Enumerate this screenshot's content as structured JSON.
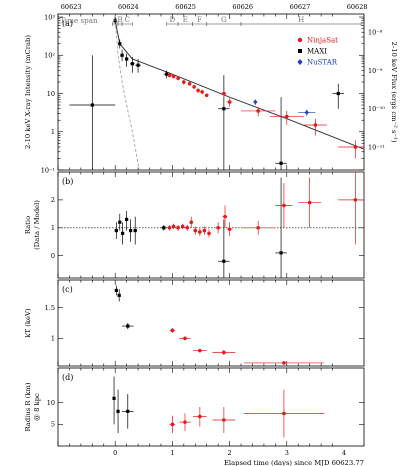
{
  "chart_data": {
    "top_axis": {
      "ticks": [
        "60623",
        "60624",
        "60625",
        "60626",
        "60627",
        "60628"
      ],
      "values": [
        60623,
        60624,
        60625,
        60626,
        60627,
        60628
      ]
    },
    "bottom_axis": {
      "label": "Elapsed time (days) since MJD 60623.77",
      "ticks": [
        "0",
        "1",
        "2",
        "3",
        "4"
      ],
      "xlim": [
        -1.0,
        4.35
      ]
    },
    "time_span": {
      "label": "Time span",
      "spans": [
        {
          "label": "A",
          "x0": -0.05,
          "x1": 0.05
        },
        {
          "label": "B",
          "x0": 0.05,
          "x1": 0.12
        },
        {
          "label": "C",
          "x0": 0.12,
          "x1": 0.3
        },
        {
          "label": "D",
          "x0": 0.9,
          "x1": 1.1
        },
        {
          "label": "E",
          "x0": 1.1,
          "x1": 1.35
        },
        {
          "label": "F",
          "x0": 1.35,
          "x1": 1.6
        },
        {
          "label": "G",
          "x0": 1.6,
          "x1": 2.2
        },
        {
          "label": "H",
          "x0": 2.2,
          "x1": 4.3
        }
      ]
    },
    "panels": [
      {
        "id": "a",
        "tag": "(a)",
        "type": "scatter",
        "ylabel": "2-10 keV X-ray Intensity (mCrab)",
        "y2label": "2-10 keV Flux (ergs cm⁻² s⁻¹)",
        "yscale": "log",
        "ylim": [
          0.1,
          1200
        ],
        "yticks": [
          "10³",
          "10²",
          "10",
          "1",
          "10⁻¹"
        ],
        "ytick_values": [
          1000,
          100,
          10,
          1,
          0.1
        ],
        "y2ticks": [
          "10⁻⁸",
          "10⁻⁹",
          "10⁻¹⁰",
          "10⁻¹¹"
        ],
        "y2tick_values": [
          400,
          40,
          4,
          0.4
        ],
        "legend": [
          {
            "name": "NinjaSat",
            "color": "#e41a1c",
            "marker": "circle"
          },
          {
            "name": "MAXI",
            "color": "#000000",
            "marker": "square"
          },
          {
            "name": "NuSTAR",
            "color": "#1f3fbf",
            "marker": "diamond"
          }
        ],
        "series": [
          {
            "name": "MAXI",
            "color": "#000000",
            "marker": "square",
            "points": [
              {
                "x": -0.4,
                "y": 5,
                "xe": 0.4,
                "ylo": 0.1,
                "yhi": 100
              },
              {
                "x": 0.0,
                "y": 800,
                "xe": 0.03,
                "ylo": 650,
                "yhi": 950
              },
              {
                "x": 0.08,
                "y": 200,
                "xe": 0.03,
                "ylo": 150,
                "yhi": 260
              },
              {
                "x": 0.12,
                "y": 100,
                "xe": 0.03,
                "ylo": 70,
                "yhi": 140
              },
              {
                "x": 0.2,
                "y": 80,
                "xe": 0.03,
                "ylo": 50,
                "yhi": 110
              },
              {
                "x": 0.3,
                "y": 60,
                "xe": 0.04,
                "ylo": 35,
                "yhi": 90
              },
              {
                "x": 0.4,
                "y": 55,
                "xe": 0.05,
                "ylo": 35,
                "yhi": 80
              },
              {
                "x": 0.9,
                "y": 32,
                "xe": 0.05,
                "ylo": 25,
                "yhi": 40
              },
              {
                "x": 1.9,
                "y": 4,
                "xe": 0.1,
                "ylo": 0.1,
                "yhi": 30
              },
              {
                "x": 2.9,
                "y": 0.15,
                "xe": 0.1,
                "ylo": 0.1,
                "yhi": 8
              },
              {
                "x": 3.9,
                "y": 10,
                "xe": 0.1,
                "ylo": 4,
                "yhi": 18
              }
            ]
          },
          {
            "name": "NinjaSat",
            "color": "#e41a1c",
            "marker": "circle",
            "points": [
              {
                "x": 0.95,
                "y": 30,
                "xe": 0.04,
                "ylo": 26,
                "yhi": 34
              },
              {
                "x": 1.02,
                "y": 28,
                "xe": 0.03,
                "ylo": 25,
                "yhi": 31
              },
              {
                "x": 1.1,
                "y": 25,
                "xe": 0.03,
                "ylo": 22,
                "yhi": 28
              },
              {
                "x": 1.2,
                "y": 20,
                "xe": 0.03,
                "ylo": 17,
                "yhi": 23
              },
              {
                "x": 1.3,
                "y": 18,
                "xe": 0.03,
                "ylo": 16,
                "yhi": 21
              },
              {
                "x": 1.38,
                "y": 15,
                "xe": 0.03,
                "ylo": 13,
                "yhi": 17
              },
              {
                "x": 1.45,
                "y": 12,
                "xe": 0.03,
                "ylo": 10.5,
                "yhi": 13.5
              },
              {
                "x": 1.52,
                "y": 11,
                "xe": 0.03,
                "ylo": 9.5,
                "yhi": 12.5
              },
              {
                "x": 1.6,
                "y": 9,
                "xe": 0.03,
                "ylo": 8,
                "yhi": 10
              },
              {
                "x": 1.9,
                "y": 10,
                "xe": 0.04,
                "ylo": 8,
                "yhi": 12
              },
              {
                "x": 2.0,
                "y": 6,
                "xe": 0.05,
                "ylo": 4.5,
                "yhi": 7.5
              },
              {
                "x": 2.5,
                "y": 3.5,
                "xe": 0.3,
                "ylo": 2.5,
                "yhi": 4.5
              },
              {
                "x": 3.0,
                "y": 2.5,
                "xe": 0.3,
                "ylo": 1.5,
                "yhi": 3.5
              },
              {
                "x": 3.5,
                "y": 1.5,
                "xe": 0.2,
                "ylo": 0.8,
                "yhi": 2.2
              },
              {
                "x": 4.2,
                "y": 0.4,
                "xe": 0.3,
                "ylo": 0.2,
                "yhi": 0.6
              }
            ]
          },
          {
            "name": "NuSTAR",
            "color": "#1f3fbf",
            "marker": "diamond",
            "points": [
              {
                "x": 2.45,
                "y": 6,
                "xe": 0.03,
                "ylo": 5,
                "yhi": 7
              },
              {
                "x": 3.35,
                "y": 3.2,
                "xe": 0.15,
                "ylo": 2.6,
                "yhi": 3.8
              }
            ]
          }
        ],
        "model_curve": {
          "points": [
            [
              0.0,
              800
            ],
            [
              0.08,
              200
            ],
            [
              0.3,
              80
            ],
            [
              1.0,
              32
            ],
            [
              2.0,
              8
            ],
            [
              3.0,
              2.2
            ],
            [
              4.35,
              0.35
            ]
          ]
        },
        "dashed_curve": {
          "points": [
            [
              0.0,
              800
            ],
            [
              0.05,
              100
            ],
            [
              0.12,
              20
            ],
            [
              0.2,
              5
            ],
            [
              0.3,
              1
            ],
            [
              0.42,
              0.1
            ]
          ]
        }
      },
      {
        "id": "b",
        "tag": "(b)",
        "type": "scatter",
        "ylabel": "Ratio (Data / Model)",
        "ylim": [
          -0.8,
          3.0
        ],
        "yticks": [
          "2",
          "1",
          "0"
        ],
        "ytick_values": [
          2,
          1,
          0
        ],
        "ref_line": 1,
        "series": [
          {
            "name": "MAXI",
            "color": "#000000",
            "points": [
              {
                "x": 0.02,
                "y": 0.9,
                "ylo": 0.6,
                "yhi": 1.2,
                "xe": 0.02
              },
              {
                "x": 0.08,
                "y": 1.2,
                "ylo": 0.9,
                "yhi": 1.5,
                "xe": 0.02
              },
              {
                "x": 0.13,
                "y": 0.8,
                "ylo": 0.4,
                "yhi": 1.2,
                "xe": 0.02
              },
              {
                "x": 0.2,
                "y": 1.3,
                "ylo": 0.9,
                "yhi": 1.6,
                "xe": 0.02
              },
              {
                "x": 0.27,
                "y": 0.9,
                "ylo": 0.5,
                "yhi": 1.3,
                "xe": 0.02
              },
              {
                "x": 0.35,
                "y": 0.9,
                "ylo": 0.4,
                "yhi": 1.4,
                "xe": 0.03
              },
              {
                "x": 0.85,
                "y": 1.0,
                "ylo": 0.9,
                "yhi": 1.1,
                "xe": 0.05
              },
              {
                "x": 1.9,
                "y": -0.2,
                "ylo": -0.8,
                "yhi": 1.3,
                "xe": 0.1
              },
              {
                "x": 2.9,
                "y": 0.1,
                "ylo": -0.8,
                "yhi": 2.8,
                "xe": 0.1
              }
            ]
          },
          {
            "name": "NinjaSat",
            "color": "#e41a1c",
            "points": [
              {
                "x": 0.95,
                "y": 1.0,
                "ylo": 0.9,
                "yhi": 1.1,
                "xe": 0.03
              },
              {
                "x": 1.02,
                "y": 1.05,
                "ylo": 0.95,
                "yhi": 1.15,
                "xe": 0.03
              },
              {
                "x": 1.1,
                "y": 1.0,
                "ylo": 0.9,
                "yhi": 1.1,
                "xe": 0.03
              },
              {
                "x": 1.18,
                "y": 1.05,
                "ylo": 0.95,
                "yhi": 1.15,
                "xe": 0.03
              },
              {
                "x": 1.26,
                "y": 1.0,
                "ylo": 0.9,
                "yhi": 1.1,
                "xe": 0.03
              },
              {
                "x": 1.33,
                "y": 1.2,
                "ylo": 1.0,
                "yhi": 1.4,
                "xe": 0.03
              },
              {
                "x": 1.4,
                "y": 0.9,
                "ylo": 0.75,
                "yhi": 1.05,
                "xe": 0.03
              },
              {
                "x": 1.48,
                "y": 0.85,
                "ylo": 0.7,
                "yhi": 1.0,
                "xe": 0.03
              },
              {
                "x": 1.56,
                "y": 0.9,
                "ylo": 0.75,
                "yhi": 1.05,
                "xe": 0.03
              },
              {
                "x": 1.64,
                "y": 0.8,
                "ylo": 0.65,
                "yhi": 0.95,
                "xe": 0.03
              },
              {
                "x": 1.8,
                "y": 1.0,
                "ylo": 0.8,
                "yhi": 1.2,
                "xe": 0.04
              },
              {
                "x": 1.92,
                "y": 1.4,
                "ylo": 1.0,
                "yhi": 1.8,
                "xe": 0.04
              },
              {
                "x": 2.0,
                "y": 0.95,
                "ylo": 0.7,
                "yhi": 1.2,
                "xe": 0.05
              },
              {
                "x": 2.5,
                "y": 1.0,
                "ylo": 0.75,
                "yhi": 1.25,
                "xe": 0.3
              },
              {
                "x": 2.95,
                "y": 1.8,
                "ylo": 1.0,
                "yhi": 2.6,
                "xe": 0.15
              },
              {
                "x": 3.4,
                "y": 1.9,
                "ylo": 1.0,
                "yhi": 2.8,
                "xe": 0.2
              },
              {
                "x": 4.2,
                "y": 2.0,
                "ylo": 0.4,
                "yhi": 3.0,
                "xe": 0.3
              }
            ]
          }
        ]
      },
      {
        "id": "c",
        "tag": "(c)",
        "type": "scatter",
        "ylabel": "kT (keV)",
        "ylim": [
          0.55,
          1.95
        ],
        "yticks": [
          "1.5",
          "1"
        ],
        "ytick_values": [
          1.5,
          1.0
        ],
        "series": [
          {
            "name": "MAXI",
            "color": "#000000",
            "points": [
              {
                "x": 0.02,
                "y": 1.78,
                "ylo": 1.7,
                "yhi": 1.86,
                "xe": 0.02
              },
              {
                "x": 0.07,
                "y": 1.7,
                "ylo": 1.6,
                "yhi": 1.8,
                "xe": 0.02
              },
              {
                "x": 0.22,
                "y": 1.2,
                "ylo": 1.15,
                "yhi": 1.25,
                "xe": 0.1
              }
            ]
          },
          {
            "name": "NinjaSat",
            "color": "#e41a1c",
            "points": [
              {
                "x": 1.0,
                "y": 1.13,
                "ylo": 1.09,
                "yhi": 1.17,
                "xe": 0.05
              },
              {
                "x": 1.22,
                "y": 1.0,
                "ylo": 0.97,
                "yhi": 1.03,
                "xe": 0.1
              },
              {
                "x": 1.48,
                "y": 0.8,
                "ylo": 0.77,
                "yhi": 0.83,
                "xe": 0.12
              },
              {
                "x": 1.9,
                "y": 0.77,
                "ylo": 0.73,
                "yhi": 0.81,
                "xe": 0.2
              },
              {
                "x": 2.95,
                "y": 0.6,
                "ylo": 0.58,
                "yhi": 0.62,
                "xe": 0.7
              }
            ]
          }
        ]
      },
      {
        "id": "d",
        "tag": "(d)",
        "type": "scatter",
        "ylabel": "Radius R (km) @ 8 kpc",
        "ylim": [
          0,
          18
        ],
        "yticks": [
          "10",
          "5"
        ],
        "ytick_values": [
          10,
          5
        ],
        "series": [
          {
            "name": "MAXI",
            "color": "#000000",
            "points": [
              {
                "x": -0.02,
                "y": 11,
                "ylo": 5,
                "yhi": 16,
                "xe": 0.02
              },
              {
                "x": 0.05,
                "y": 8,
                "ylo": 3,
                "yhi": 13,
                "xe": 0.02
              },
              {
                "x": 0.22,
                "y": 8,
                "ylo": 4,
                "yhi": 12,
                "xe": 0.1
              }
            ]
          },
          {
            "name": "NinjaSat",
            "color": "#e41a1c",
            "points": [
              {
                "x": 1.0,
                "y": 5,
                "ylo": 3,
                "yhi": 7,
                "xe": 0.05
              },
              {
                "x": 1.22,
                "y": 5.5,
                "ylo": 3.5,
                "yhi": 7.5,
                "xe": 0.1
              },
              {
                "x": 1.48,
                "y": 6.8,
                "ylo": 4.5,
                "yhi": 9,
                "xe": 0.12
              },
              {
                "x": 1.9,
                "y": 6,
                "ylo": 3,
                "yhi": 9,
                "xe": 0.2
              },
              {
                "x": 2.95,
                "y": 7.5,
                "ylo": 2,
                "yhi": 13,
                "xe": 0.7
              }
            ]
          }
        ]
      }
    ]
  }
}
